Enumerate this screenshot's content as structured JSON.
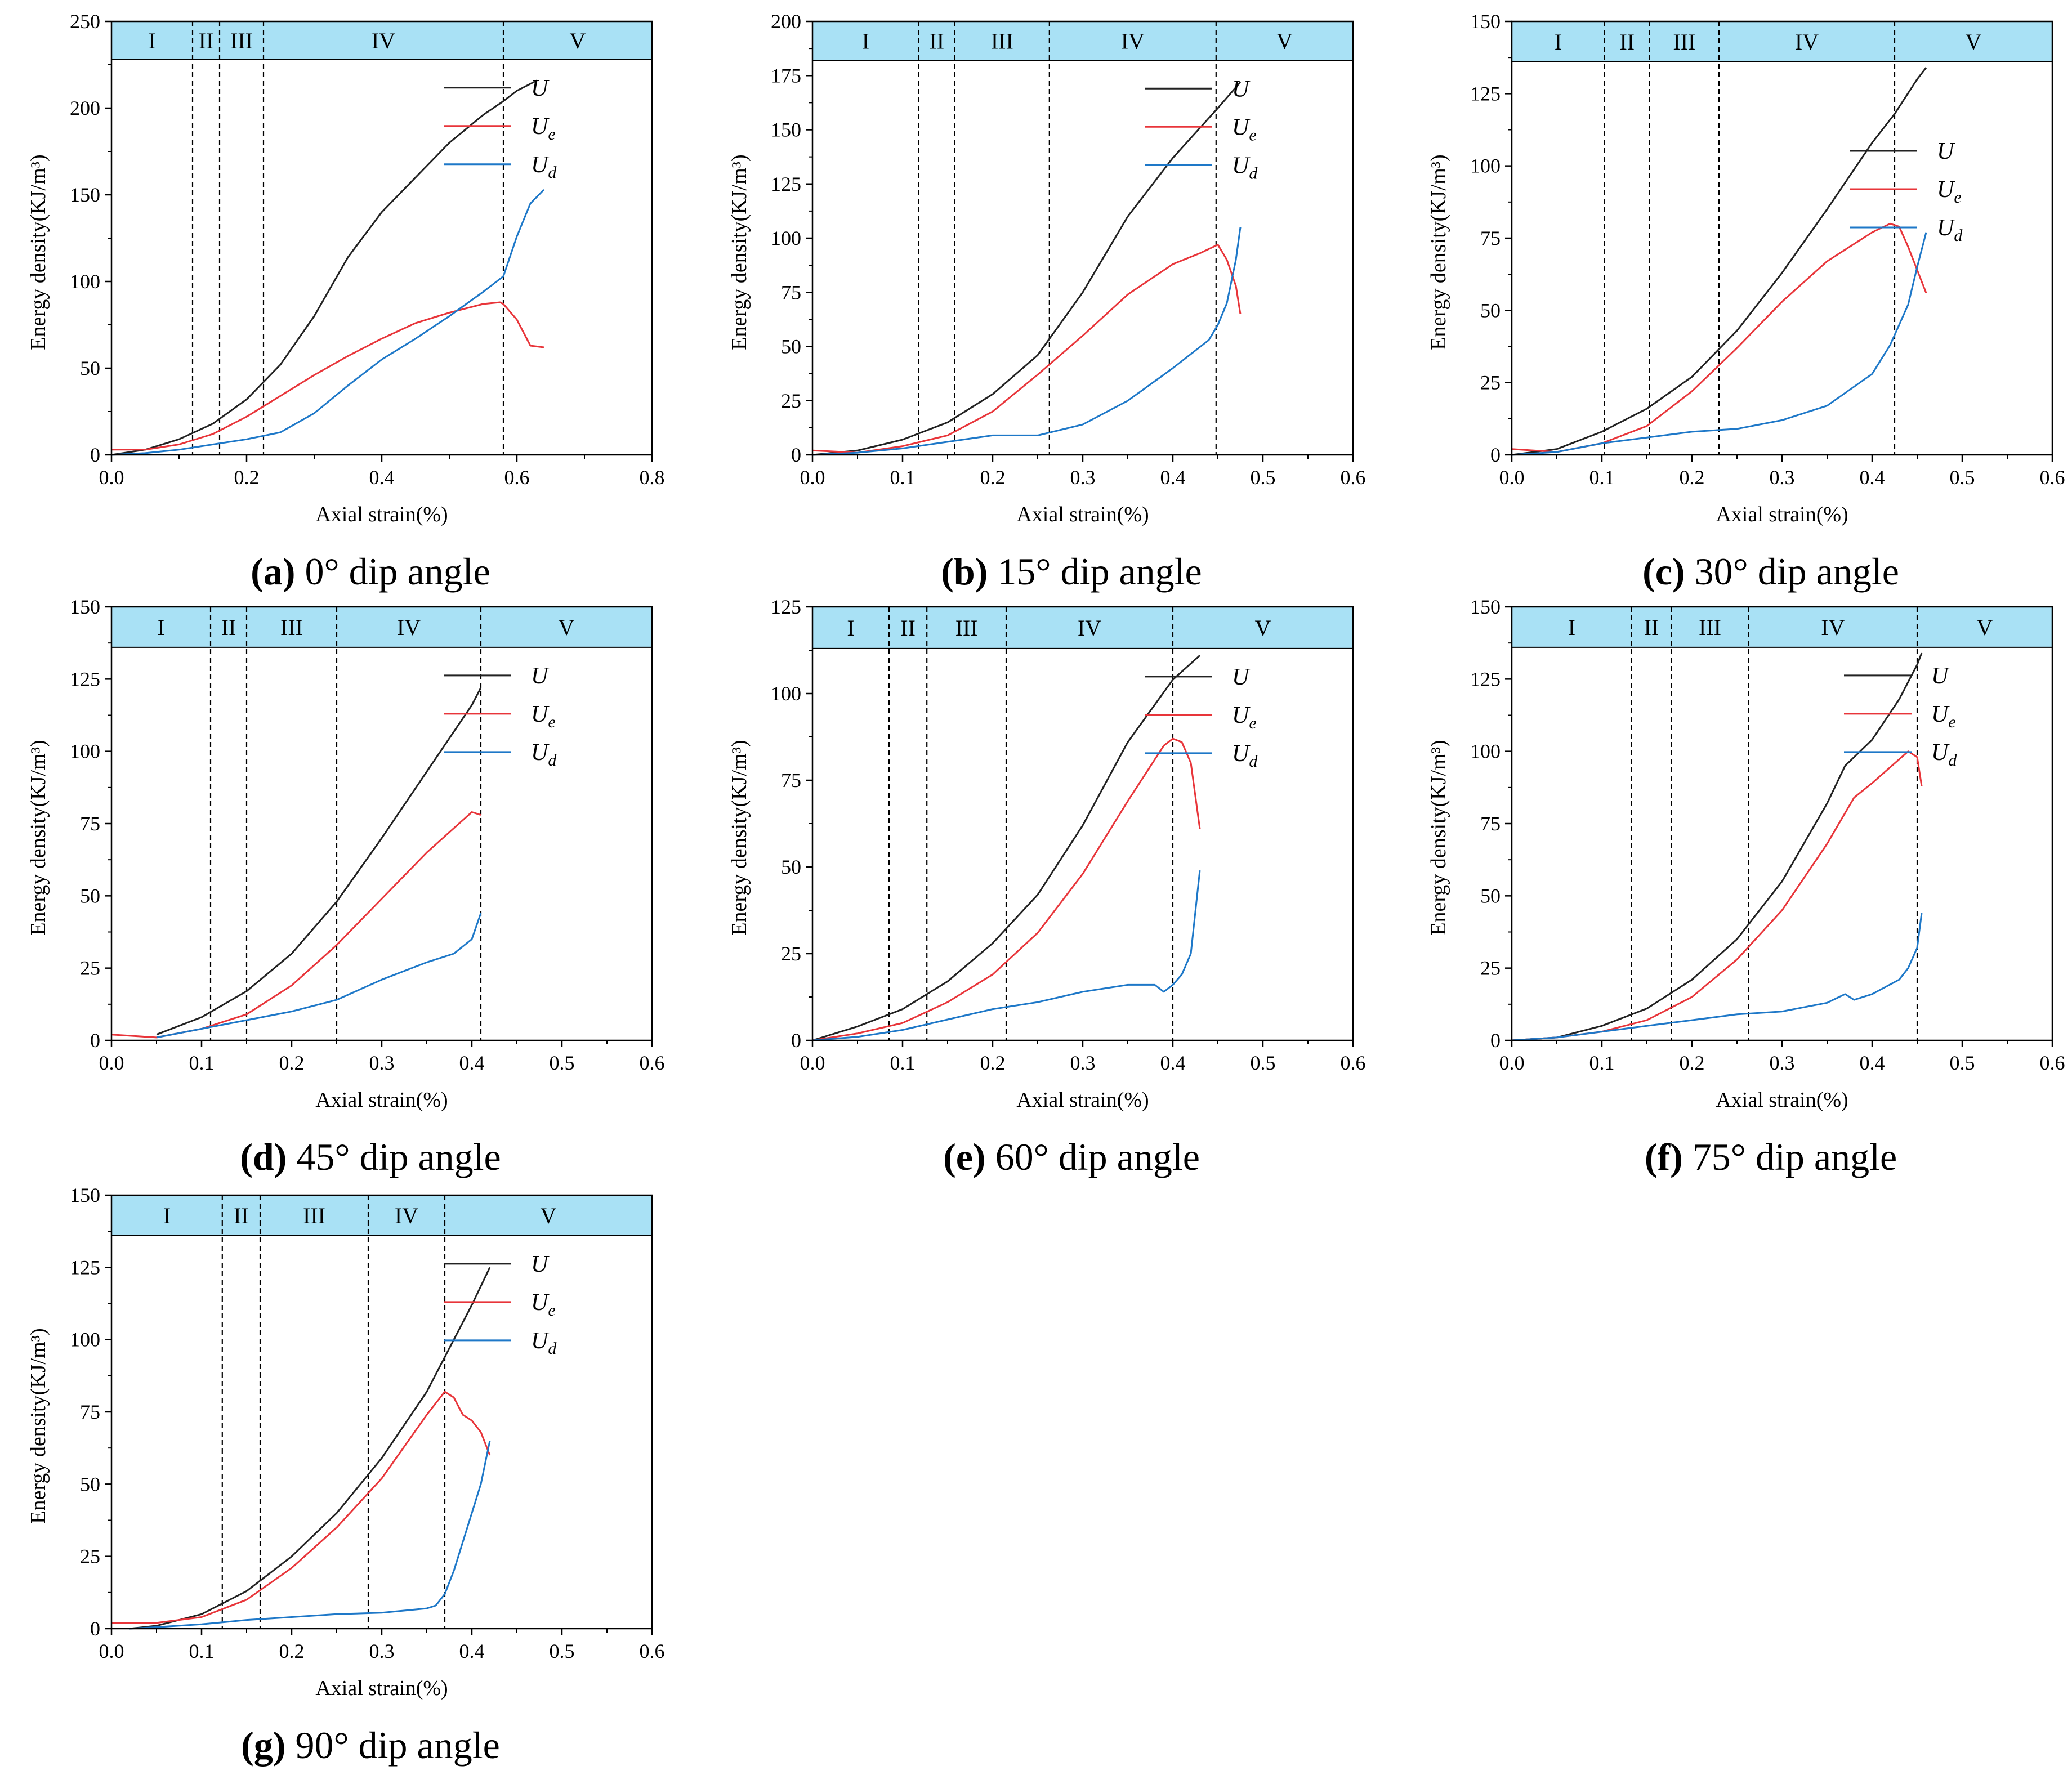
{
  "figure": {
    "legend_symbols": [
      {
        "main": "U",
        "sub": ""
      },
      {
        "main": "U",
        "sub": "e"
      },
      {
        "main": "U",
        "sub": "d"
      }
    ],
    "colors": {
      "U": "#222222",
      "Ue": "#e8353a",
      "Ud": "#1e78c8",
      "band": "#a9e1f5"
    }
  },
  "chart_data": [
    {
      "type": "line",
      "caption_letter": "(a)",
      "caption_text": " 0° dip angle",
      "xlabel": "Axial strain(%)",
      "ylabel": "Energy density(KJ/m³)",
      "xlim": [
        0,
        0.8
      ],
      "ylim": [
        0,
        250
      ],
      "xticks": [
        0,
        0.2,
        0.4,
        0.6,
        0.8
      ],
      "xtick_labels": [
        "0.0",
        "0.2",
        "0.4",
        "0.6",
        "0.8"
      ],
      "yticks": [
        0,
        50,
        100,
        150,
        200,
        250
      ],
      "ytick_labels": [
        "0",
        "50",
        "100",
        "150",
        "200",
        "250"
      ],
      "band_top": 250,
      "band_bottom": 228,
      "phase_bounds": [
        0.12,
        0.16,
        0.225,
        0.58
      ],
      "phases": [
        "I",
        "II",
        "III",
        "IV",
        "V"
      ],
      "legend_position": "top-right",
      "series": [
        {
          "name": "U",
          "x": [
            0,
            0.05,
            0.1,
            0.15,
            0.2,
            0.25,
            0.3,
            0.35,
            0.4,
            0.45,
            0.5,
            0.55,
            0.58,
            0.6,
            0.63
          ],
          "y": [
            0,
            3,
            9,
            18,
            32,
            52,
            80,
            114,
            140,
            160,
            180,
            196,
            204,
            210,
            216
          ]
        },
        {
          "name": "Ue",
          "x": [
            0,
            0.05,
            0.1,
            0.15,
            0.2,
            0.25,
            0.3,
            0.35,
            0.4,
            0.45,
            0.5,
            0.55,
            0.575,
            0.58,
            0.6,
            0.62,
            0.64
          ],
          "y": [
            3,
            3,
            6,
            12,
            22,
            34,
            46,
            57,
            67,
            76,
            82,
            87,
            88,
            87,
            78,
            63,
            62
          ]
        },
        {
          "name": "Ud",
          "x": [
            0,
            0.05,
            0.1,
            0.15,
            0.2,
            0.25,
            0.3,
            0.35,
            0.4,
            0.45,
            0.5,
            0.55,
            0.58,
            0.6,
            0.62,
            0.64
          ],
          "y": [
            0,
            1,
            3,
            6,
            9,
            13,
            24,
            40,
            55,
            67,
            80,
            94,
            103,
            126,
            145,
            153
          ]
        }
      ]
    },
    {
      "type": "line",
      "caption_letter": "(b)",
      "caption_text": " 15° dip angle",
      "xlabel": "Axial strain(%)",
      "ylabel": "Energy density(KJ/m³)",
      "xlim": [
        0,
        0.6
      ],
      "ylim": [
        0,
        200
      ],
      "xticks": [
        0,
        0.1,
        0.2,
        0.3,
        0.4,
        0.5,
        0.6
      ],
      "xtick_labels": [
        "0.0",
        "0.1",
        "0.2",
        "0.3",
        "0.4",
        "0.5",
        "0.6"
      ],
      "yticks": [
        0,
        25,
        50,
        75,
        100,
        125,
        150,
        175,
        200
      ],
      "ytick_labels": [
        "0",
        "25",
        "50",
        "75",
        "100",
        "125",
        "150",
        "175",
        "200"
      ],
      "band_top": 200,
      "band_bottom": 182,
      "phase_bounds": [
        0.118,
        0.158,
        0.263,
        0.448
      ],
      "phases": [
        "I",
        "II",
        "III",
        "IV",
        "V"
      ],
      "legend_position": "top-right",
      "series": [
        {
          "name": "U",
          "x": [
            0,
            0.05,
            0.1,
            0.15,
            0.2,
            0.25,
            0.3,
            0.35,
            0.4,
            0.45,
            0.475
          ],
          "y": [
            0,
            2,
            7,
            15,
            28,
            46,
            75,
            110,
            137,
            160,
            172
          ]
        },
        {
          "name": "Ue",
          "x": [
            0,
            0.05,
            0.1,
            0.15,
            0.2,
            0.25,
            0.3,
            0.35,
            0.4,
            0.43,
            0.45,
            0.46,
            0.47,
            0.475
          ],
          "y": [
            2,
            1,
            4,
            9,
            20,
            37,
            55,
            74,
            88,
            93,
            97,
            90,
            78,
            65
          ]
        },
        {
          "name": "Ud",
          "x": [
            0,
            0.05,
            0.1,
            0.15,
            0.2,
            0.25,
            0.3,
            0.35,
            0.4,
            0.44,
            0.45,
            0.46,
            0.47,
            0.475
          ],
          "y": [
            0,
            1,
            3,
            6,
            9,
            9,
            14,
            25,
            40,
            53,
            60,
            70,
            90,
            105
          ]
        }
      ]
    },
    {
      "type": "line",
      "caption_letter": "(c)",
      "caption_text": " 30° dip angle",
      "xlabel": "Axial strain(%)",
      "ylabel": "Energy density(KJ/m³)",
      "xlim": [
        0,
        0.6
      ],
      "ylim": [
        0,
        150
      ],
      "xticks": [
        0,
        0.1,
        0.2,
        0.3,
        0.4,
        0.5,
        0.6
      ],
      "xtick_labels": [
        "0.0",
        "0.1",
        "0.2",
        "0.3",
        "0.4",
        "0.5",
        "0.6"
      ],
      "yticks": [
        0,
        25,
        50,
        75,
        100,
        125,
        150
      ],
      "ytick_labels": [
        "0",
        "25",
        "50",
        "75",
        "100",
        "125",
        "150"
      ],
      "band_top": 150,
      "band_bottom": 136,
      "phase_bounds": [
        0.103,
        0.153,
        0.23,
        0.425
      ],
      "phases": [
        "I",
        "II",
        "III",
        "IV",
        "V"
      ],
      "legend_position": "right",
      "series": [
        {
          "name": "U",
          "x": [
            0,
            0.05,
            0.1,
            0.15,
            0.2,
            0.25,
            0.3,
            0.35,
            0.4,
            0.425,
            0.45,
            0.46
          ],
          "y": [
            0,
            2,
            8,
            16,
            27,
            43,
            63,
            85,
            108,
            118,
            130,
            134
          ]
        },
        {
          "name": "Ue",
          "x": [
            0,
            0.05,
            0.1,
            0.15,
            0.2,
            0.25,
            0.3,
            0.35,
            0.4,
            0.42,
            0.43,
            0.44,
            0.45,
            0.46
          ],
          "y": [
            2,
            1,
            4,
            10,
            22,
            37,
            53,
            67,
            77,
            80,
            79,
            72,
            64,
            56
          ]
        },
        {
          "name": "Ud",
          "x": [
            0,
            0.05,
            0.1,
            0.15,
            0.2,
            0.25,
            0.3,
            0.35,
            0.4,
            0.42,
            0.44,
            0.45,
            0.46
          ],
          "y": [
            0,
            1,
            4,
            6,
            8,
            9,
            12,
            17,
            28,
            38,
            52,
            65,
            77
          ]
        }
      ]
    },
    {
      "type": "line",
      "caption_letter": "(d)",
      "caption_text": " 45° dip angle",
      "xlabel": "Axial strain(%)",
      "ylabel": "Energy density(KJ/m³)",
      "xlim": [
        0,
        0.6
      ],
      "ylim": [
        0,
        150
      ],
      "xticks": [
        0,
        0.1,
        0.2,
        0.3,
        0.4,
        0.5,
        0.6
      ],
      "xtick_labels": [
        "0.0",
        "0.1",
        "0.2",
        "0.3",
        "0.4",
        "0.5",
        "0.6"
      ],
      "yticks": [
        0,
        25,
        50,
        75,
        100,
        125,
        150
      ],
      "ytick_labels": [
        "0",
        "25",
        "50",
        "75",
        "100",
        "125",
        "150"
      ],
      "band_top": 150,
      "band_bottom": 136,
      "phase_bounds": [
        0.11,
        0.15,
        0.25,
        0.41
      ],
      "phases": [
        "I",
        "II",
        "III",
        "IV",
        "V"
      ],
      "legend_position": "top-right",
      "series": [
        {
          "name": "U",
          "x": [
            0.05,
            0.1,
            0.15,
            0.2,
            0.25,
            0.3,
            0.35,
            0.4,
            0.41
          ],
          "y": [
            2,
            8,
            17,
            30,
            48,
            70,
            93,
            116,
            122
          ]
        },
        {
          "name": "Ue",
          "x": [
            0,
            0.05,
            0.1,
            0.15,
            0.2,
            0.25,
            0.3,
            0.35,
            0.4,
            0.41
          ],
          "y": [
            2,
            1,
            4,
            9,
            19,
            33,
            49,
            65,
            79,
            78
          ]
        },
        {
          "name": "Ud",
          "x": [
            0.05,
            0.1,
            0.15,
            0.2,
            0.25,
            0.3,
            0.35,
            0.38,
            0.4,
            0.41
          ],
          "y": [
            1,
            4,
            7,
            10,
            14,
            21,
            27,
            30,
            35,
            44
          ]
        }
      ]
    },
    {
      "type": "line",
      "caption_letter": "(e)",
      "caption_text": " 60° dip angle",
      "xlabel": "Axial strain(%)",
      "ylabel": "Energy density(KJ/m³)",
      "xlim": [
        0,
        0.6
      ],
      "ylim": [
        0,
        125
      ],
      "xticks": [
        0,
        0.1,
        0.2,
        0.3,
        0.4,
        0.5,
        0.6
      ],
      "xtick_labels": [
        "0.0",
        "0.1",
        "0.2",
        "0.3",
        "0.4",
        "0.5",
        "0.6"
      ],
      "yticks": [
        0,
        25,
        50,
        75,
        100,
        125
      ],
      "ytick_labels": [
        "0",
        "25",
        "50",
        "75",
        "100",
        "125"
      ],
      "band_top": 125,
      "band_bottom": 113,
      "phase_bounds": [
        0.085,
        0.127,
        0.215,
        0.4
      ],
      "phases": [
        "I",
        "II",
        "III",
        "IV",
        "V"
      ],
      "legend_position": "top-right",
      "series": [
        {
          "name": "U",
          "x": [
            0,
            0.05,
            0.1,
            0.15,
            0.2,
            0.25,
            0.3,
            0.35,
            0.4,
            0.43
          ],
          "y": [
            0,
            4,
            9,
            17,
            28,
            42,
            62,
            86,
            104,
            111
          ]
        },
        {
          "name": "Ue",
          "x": [
            0,
            0.05,
            0.1,
            0.15,
            0.2,
            0.25,
            0.3,
            0.35,
            0.39,
            0.4,
            0.41,
            0.42,
            0.43
          ],
          "y": [
            0,
            2,
            5,
            11,
            19,
            31,
            48,
            69,
            85,
            87,
            86,
            80,
            61
          ]
        },
        {
          "name": "Ud",
          "x": [
            0,
            0.05,
            0.1,
            0.15,
            0.2,
            0.25,
            0.3,
            0.35,
            0.38,
            0.39,
            0.4,
            0.41,
            0.42,
            0.43
          ],
          "y": [
            0,
            1,
            3,
            6,
            9,
            11,
            14,
            16,
            16,
            14,
            16,
            19,
            25,
            49
          ]
        }
      ]
    },
    {
      "type": "line",
      "caption_letter": "(f)",
      "caption_text": " 75° dip angle",
      "xlabel": "Axial strain(%)",
      "ylabel": "Energy density(KJ/m³)",
      "xlim": [
        0,
        0.6
      ],
      "ylim": [
        0,
        150
      ],
      "xticks": [
        0,
        0.1,
        0.2,
        0.3,
        0.4,
        0.5,
        0.6
      ],
      "xtick_labels": [
        "0.0",
        "0.1",
        "0.2",
        "0.3",
        "0.4",
        "0.5",
        "0.6"
      ],
      "yticks": [
        0,
        25,
        50,
        75,
        100,
        125,
        150
      ],
      "ytick_labels": [
        "0",
        "25",
        "50",
        "75",
        "100",
        "125",
        "150"
      ],
      "band_top": 150,
      "band_bottom": 136,
      "phase_bounds": [
        0.133,
        0.177,
        0.263,
        0.45
      ],
      "phases": [
        "I",
        "II",
        "III",
        "IV",
        "V"
      ],
      "legend_position": "top-right",
      "series": [
        {
          "name": "U",
          "x": [
            0,
            0.05,
            0.1,
            0.15,
            0.2,
            0.25,
            0.3,
            0.35,
            0.37,
            0.4,
            0.43,
            0.45,
            0.455
          ],
          "y": [
            0,
            1,
            5,
            11,
            21,
            35,
            55,
            82,
            95,
            104,
            118,
            130,
            134
          ]
        },
        {
          "name": "Ue",
          "x": [
            0,
            0.05,
            0.1,
            0.15,
            0.2,
            0.25,
            0.3,
            0.35,
            0.38,
            0.4,
            0.44,
            0.45,
            0.455
          ],
          "y": [
            0,
            1,
            3,
            7,
            15,
            28,
            45,
            68,
            84,
            89,
            100,
            98,
            88
          ]
        },
        {
          "name": "Ud",
          "x": [
            0,
            0.05,
            0.1,
            0.15,
            0.2,
            0.25,
            0.3,
            0.35,
            0.37,
            0.38,
            0.4,
            0.43,
            0.44,
            0.45,
            0.455
          ],
          "y": [
            0,
            1,
            3,
            5,
            7,
            9,
            10,
            13,
            16,
            14,
            16,
            21,
            25,
            32,
            44
          ]
        }
      ]
    },
    {
      "type": "line",
      "caption_letter": "(g)",
      "caption_text": " 90° dip angle",
      "xlabel": "Axial strain(%)",
      "ylabel": "Energy density(KJ/m³)",
      "xlim": [
        0,
        0.6
      ],
      "ylim": [
        0,
        150
      ],
      "xticks": [
        0,
        0.1,
        0.2,
        0.3,
        0.4,
        0.5,
        0.6
      ],
      "xtick_labels": [
        "0.0",
        "0.1",
        "0.2",
        "0.3",
        "0.4",
        "0.5",
        "0.6"
      ],
      "yticks": [
        0,
        25,
        50,
        75,
        100,
        125,
        150
      ],
      "ytick_labels": [
        "0",
        "25",
        "50",
        "75",
        "100",
        "125",
        "150"
      ],
      "band_top": 150,
      "band_bottom": 136,
      "phase_bounds": [
        0.123,
        0.165,
        0.285,
        0.37
      ],
      "phases": [
        "I",
        "II",
        "III",
        "IV",
        "V"
      ],
      "legend_position": "top-right",
      "series": [
        {
          "name": "U",
          "x": [
            0.02,
            0.05,
            0.1,
            0.15,
            0.2,
            0.25,
            0.3,
            0.35,
            0.38,
            0.4,
            0.42
          ],
          "y": [
            0,
            1,
            5,
            13,
            25,
            40,
            59,
            82,
            100,
            112,
            125
          ]
        },
        {
          "name": "Ue",
          "x": [
            0,
            0.05,
            0.1,
            0.15,
            0.2,
            0.25,
            0.3,
            0.35,
            0.37,
            0.38,
            0.39,
            0.4,
            0.41,
            0.42
          ],
          "y": [
            2,
            2,
            4,
            10,
            21,
            35,
            52,
            74,
            82,
            80,
            74,
            72,
            68,
            60
          ]
        },
        {
          "name": "Ud",
          "x": [
            0.02,
            0.05,
            0.1,
            0.15,
            0.2,
            0.25,
            0.3,
            0.35,
            0.36,
            0.37,
            0.38,
            0.39,
            0.4,
            0.41,
            0.42
          ],
          "y": [
            0,
            0.5,
            1.5,
            3,
            4,
            5,
            5.5,
            7,
            8,
            12,
            20,
            30,
            40,
            50,
            65
          ]
        }
      ]
    }
  ]
}
